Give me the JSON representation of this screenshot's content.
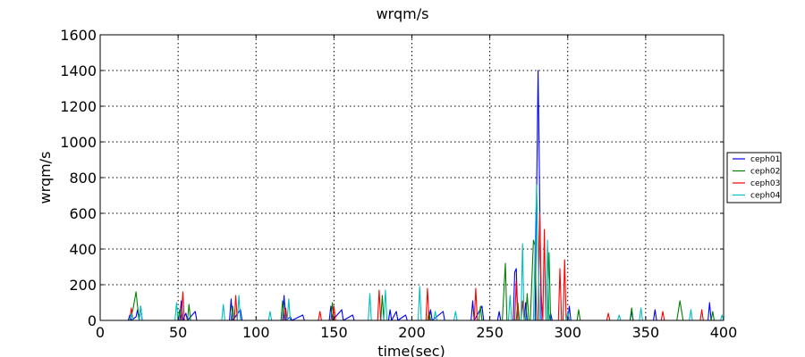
{
  "chart_data": {
    "type": "line",
    "title": "wrqm/s",
    "xlabel": "time(sec)",
    "ylabel": "wrqm/s",
    "xlim": [
      0,
      400
    ],
    "ylim": [
      0,
      1600
    ],
    "xticks": [
      0,
      50,
      100,
      150,
      200,
      250,
      300,
      350,
      400
    ],
    "yticks": [
      0,
      200,
      400,
      600,
      800,
      1000,
      1200,
      1400,
      1600
    ],
    "grid": true,
    "legend_position": "right",
    "series": [
      {
        "name": "ceph01",
        "color": "#0000ff",
        "points": [
          [
            18,
            0
          ],
          [
            19,
            30
          ],
          [
            20,
            0
          ],
          [
            23,
            20
          ],
          [
            24,
            60
          ],
          [
            25,
            0
          ],
          [
            26,
            80
          ],
          [
            27,
            0
          ],
          [
            51,
            0
          ],
          [
            52,
            110
          ],
          [
            53,
            0
          ],
          [
            55,
            40
          ],
          [
            56,
            0
          ],
          [
            61,
            50
          ],
          [
            62,
            0
          ],
          [
            83,
            0
          ],
          [
            84,
            120
          ],
          [
            85,
            0
          ],
          [
            90,
            60
          ],
          [
            91,
            0
          ],
          [
            117,
            0
          ],
          [
            118,
            140
          ],
          [
            119,
            0
          ],
          [
            122,
            20
          ],
          [
            123,
            0
          ],
          [
            130,
            30
          ],
          [
            131,
            0
          ],
          [
            147,
            0
          ],
          [
            148,
            80
          ],
          [
            149,
            0
          ],
          [
            155,
            60
          ],
          [
            156,
            0
          ],
          [
            162,
            30
          ],
          [
            163,
            0
          ],
          [
            185,
            0
          ],
          [
            186,
            60
          ],
          [
            187,
            0
          ],
          [
            190,
            50
          ],
          [
            191,
            0
          ],
          [
            196,
            30
          ],
          [
            197,
            0
          ],
          [
            211,
            0
          ],
          [
            212,
            60
          ],
          [
            213,
            0
          ],
          [
            220,
            50
          ],
          [
            221,
            0
          ],
          [
            238,
            0
          ],
          [
            239,
            110
          ],
          [
            240,
            0
          ],
          [
            245,
            80
          ],
          [
            246,
            0
          ],
          [
            255,
            0
          ],
          [
            256,
            50
          ],
          [
            257,
            0
          ],
          [
            265,
            0
          ],
          [
            266,
            270
          ],
          [
            267,
            290
          ],
          [
            268,
            0
          ],
          [
            272,
            0
          ],
          [
            273,
            100
          ],
          [
            274,
            0
          ],
          [
            279,
            0
          ],
          [
            281,
            1400
          ],
          [
            283,
            0
          ],
          [
            288,
            0
          ],
          [
            289,
            40
          ],
          [
            290,
            0
          ],
          [
            300,
            0
          ],
          [
            301,
            80
          ],
          [
            302,
            0
          ],
          [
            340,
            0
          ],
          [
            341,
            50
          ],
          [
            342,
            0
          ],
          [
            355,
            0
          ],
          [
            356,
            60
          ],
          [
            357,
            0
          ],
          [
            390,
            0
          ],
          [
            391,
            100
          ],
          [
            392,
            0
          ]
        ]
      },
      {
        "name": "ceph02",
        "color": "#008000",
        "points": [
          [
            19,
            0
          ],
          [
            21,
            60
          ],
          [
            23,
            160
          ],
          [
            24,
            80
          ],
          [
            25,
            0
          ],
          [
            50,
            0
          ],
          [
            51,
            60
          ],
          [
            52,
            0
          ],
          [
            56,
            0
          ],
          [
            57,
            90
          ],
          [
            58,
            0
          ],
          [
            84,
            0
          ],
          [
            85,
            80
          ],
          [
            86,
            0
          ],
          [
            116,
            0
          ],
          [
            117,
            110
          ],
          [
            118,
            0
          ],
          [
            148,
            0
          ],
          [
            149,
            100
          ],
          [
            150,
            0
          ],
          [
            180,
            0
          ],
          [
            181,
            140
          ],
          [
            182,
            0
          ],
          [
            210,
            0
          ],
          [
            211,
            50
          ],
          [
            212,
            0
          ],
          [
            243,
            0
          ],
          [
            244,
            80
          ],
          [
            245,
            0
          ],
          [
            258,
            0
          ],
          [
            260,
            320
          ],
          [
            261,
            0
          ],
          [
            267,
            0
          ],
          [
            268,
            100
          ],
          [
            269,
            0
          ],
          [
            273,
            0
          ],
          [
            274,
            150
          ],
          [
            275,
            0
          ],
          [
            276,
            0
          ],
          [
            278,
            450
          ],
          [
            279,
            420
          ],
          [
            280,
            0
          ],
          [
            287,
            0
          ],
          [
            288,
            380
          ],
          [
            289,
            0
          ],
          [
            306,
            0
          ],
          [
            307,
            60
          ],
          [
            308,
            0
          ],
          [
            340,
            0
          ],
          [
            341,
            70
          ],
          [
            342,
            0
          ],
          [
            370,
            0
          ],
          [
            372,
            110
          ],
          [
            374,
            0
          ],
          [
            392,
            0
          ],
          [
            393,
            50
          ],
          [
            394,
            0
          ]
        ]
      },
      {
        "name": "ceph03",
        "color": "#ff0000",
        "points": [
          [
            19,
            0
          ],
          [
            20,
            70
          ],
          [
            21,
            0
          ],
          [
            52,
            0
          ],
          [
            53,
            160
          ],
          [
            54,
            0
          ],
          [
            86,
            0
          ],
          [
            87,
            140
          ],
          [
            88,
            0
          ],
          [
            118,
            0
          ],
          [
            119,
            70
          ],
          [
            120,
            0
          ],
          [
            140,
            0
          ],
          [
            141,
            50
          ],
          [
            142,
            0
          ],
          [
            149,
            0
          ],
          [
            150,
            80
          ],
          [
            151,
            0
          ],
          [
            178,
            0
          ],
          [
            179,
            170
          ],
          [
            180,
            0
          ],
          [
            209,
            0
          ],
          [
            210,
            180
          ],
          [
            211,
            0
          ],
          [
            240,
            0
          ],
          [
            241,
            180
          ],
          [
            242,
            0
          ],
          [
            266,
            0
          ],
          [
            267,
            220
          ],
          [
            268,
            0
          ],
          [
            270,
            0
          ],
          [
            271,
            110
          ],
          [
            272,
            0
          ],
          [
            281,
            0
          ],
          [
            282,
            600
          ],
          [
            283,
            150
          ],
          [
            284,
            0
          ],
          [
            285,
            510
          ],
          [
            286,
            0
          ],
          [
            294,
            0
          ],
          [
            295,
            290
          ],
          [
            296,
            0
          ],
          [
            297,
            0
          ],
          [
            298,
            340
          ],
          [
            299,
            0
          ],
          [
            325,
            0
          ],
          [
            326,
            40
          ],
          [
            327,
            0
          ],
          [
            360,
            0
          ],
          [
            361,
            50
          ],
          [
            362,
            0
          ],
          [
            385,
            0
          ],
          [
            386,
            60
          ],
          [
            387,
            0
          ]
        ]
      },
      {
        "name": "ceph04",
        "color": "#00bfbf",
        "points": [
          [
            19,
            0
          ],
          [
            20,
            40
          ],
          [
            21,
            0
          ],
          [
            25,
            0
          ],
          [
            26,
            80
          ],
          [
            27,
            0
          ],
          [
            48,
            0
          ],
          [
            49,
            100
          ],
          [
            50,
            0
          ],
          [
            78,
            0
          ],
          [
            79,
            90
          ],
          [
            80,
            0
          ],
          [
            88,
            0
          ],
          [
            89,
            140
          ],
          [
            90,
            0
          ],
          [
            108,
            0
          ],
          [
            109,
            50
          ],
          [
            110,
            0
          ],
          [
            120,
            0
          ],
          [
            121,
            120
          ],
          [
            122,
            0
          ],
          [
            172,
            0
          ],
          [
            173,
            150
          ],
          [
            174,
            0
          ],
          [
            182,
            0
          ],
          [
            183,
            170
          ],
          [
            184,
            0
          ],
          [
            204,
            0
          ],
          [
            205,
            190
          ],
          [
            206,
            0
          ],
          [
            214,
            0
          ],
          [
            215,
            50
          ],
          [
            216,
            0
          ],
          [
            227,
            0
          ],
          [
            228,
            50
          ],
          [
            229,
            0
          ],
          [
            262,
            0
          ],
          [
            263,
            140
          ],
          [
            264,
            0
          ],
          [
            270,
            0
          ],
          [
            271,
            430
          ],
          [
            272,
            0
          ],
          [
            278,
            0
          ],
          [
            280,
            760
          ],
          [
            281,
            400
          ],
          [
            282,
            0
          ],
          [
            286,
            0
          ],
          [
            287,
            450
          ],
          [
            288,
            0
          ],
          [
            299,
            0
          ],
          [
            300,
            50
          ],
          [
            301,
            0
          ],
          [
            332,
            0
          ],
          [
            333,
            30
          ],
          [
            334,
            0
          ],
          [
            346,
            0
          ],
          [
            347,
            70
          ],
          [
            348,
            0
          ],
          [
            378,
            0
          ],
          [
            379,
            60
          ],
          [
            380,
            0
          ],
          [
            398,
            0
          ],
          [
            399,
            30
          ],
          [
            400,
            0
          ]
        ]
      }
    ]
  }
}
